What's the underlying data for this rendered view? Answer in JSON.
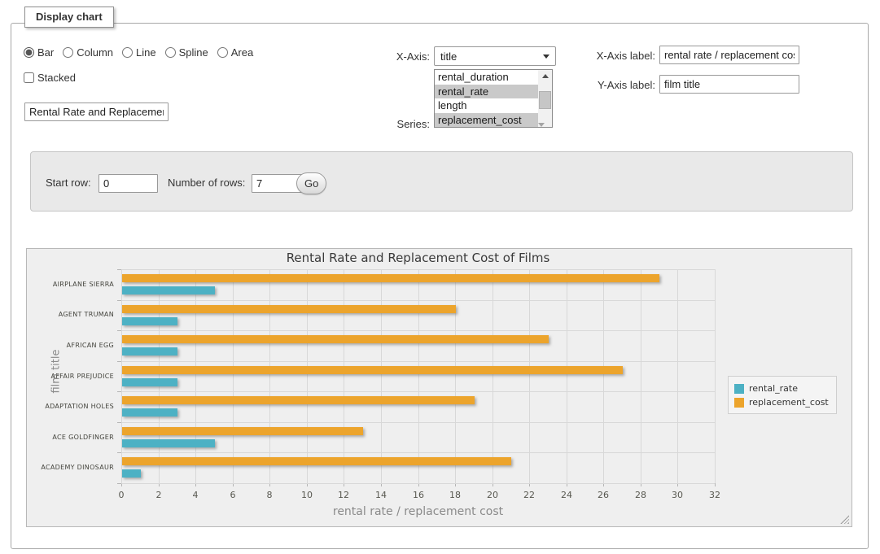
{
  "page": {
    "fieldset_legend": "Display chart"
  },
  "controls": {
    "chart_types": [
      {
        "label": "Bar",
        "checked": true
      },
      {
        "label": "Column",
        "checked": false
      },
      {
        "label": "Line",
        "checked": false
      },
      {
        "label": "Spline",
        "checked": false
      },
      {
        "label": "Area",
        "checked": false
      }
    ],
    "stacked_label": "Stacked",
    "title_value": "Rental Rate and Replacement Cost of Films",
    "xaxis_caption": "X-Axis:",
    "xaxis_selected": "title",
    "series_caption": "Series:",
    "series_options": [
      {
        "label": "rental_duration",
        "selected": false
      },
      {
        "label": "rental_rate",
        "selected": true
      },
      {
        "label": "length",
        "selected": false
      },
      {
        "label": "replacement_cost",
        "selected": true
      }
    ],
    "xaxis_label_field": {
      "caption": "X-Axis label:",
      "value": "rental rate / replacement cost"
    },
    "yaxis_label_field": {
      "caption": "Y-Axis label:",
      "value": "film title"
    }
  },
  "rows_form": {
    "start_row_caption": "Start row:",
    "start_row_value": "0",
    "num_rows_caption": "Number of rows:",
    "num_rows_value": "7",
    "go_label": "Go"
  },
  "chart_data": {
    "type": "bar",
    "title": "Rental Rate and Replacement Cost of Films",
    "xlabel": "rental rate / replacement cost",
    "ylabel": "film title",
    "categories": [
      "AIRPLANE SIERRA",
      "AGENT TRUMAN",
      "AFRICAN EGG",
      "AFFAIR PREJUDICE",
      "ADAPTATION HOLES",
      "ACE GOLDFINGER",
      "ACADEMY DINOSAUR"
    ],
    "series": [
      {
        "name": "rental_rate",
        "color": "#4db1c4",
        "values": [
          4.99,
          2.99,
          2.99,
          2.99,
          2.99,
          4.99,
          0.99
        ]
      },
      {
        "name": "replacement_cost",
        "color": "#eca42c",
        "values": [
          28.99,
          17.99,
          22.99,
          26.99,
          18.99,
          12.99,
          20.99
        ]
      }
    ],
    "xlim": [
      0,
      32
    ],
    "xticks": [
      0,
      2,
      4,
      6,
      8,
      10,
      12,
      14,
      16,
      18,
      20,
      22,
      24,
      26,
      28,
      30,
      32
    ],
    "grid": true,
    "legend_position": "right"
  }
}
